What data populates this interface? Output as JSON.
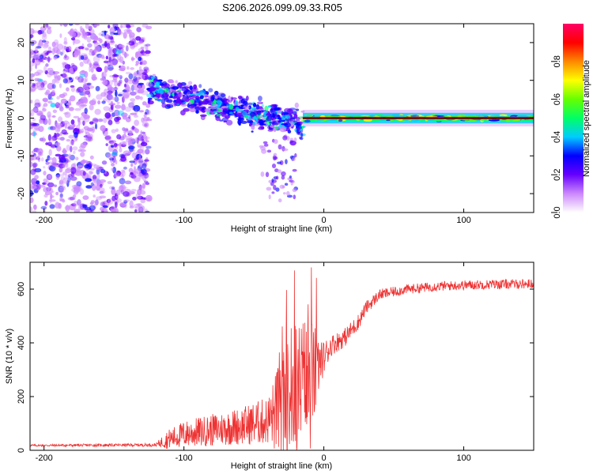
{
  "title": "S206.2026.099.09.33.R05",
  "chart_data": [
    {
      "type": "heatmap",
      "xlabel": "Height of straight line (km)",
      "ylabel": "Frequency (Hz)",
      "xlim": [
        -210,
        150
      ],
      "ylim": [
        -25,
        25
      ],
      "xticks": [
        -200,
        -100,
        0,
        100
      ],
      "yticks": [
        -20,
        -10,
        0,
        10,
        20
      ],
      "colorbar": {
        "label": "Normalized spectral amplitude",
        "range": [
          0,
          1
        ],
        "ticks": [
          "0.0",
          "0.2",
          "0.4",
          "0.6",
          "0.8"
        ],
        "tick_values": [
          0.0,
          0.2,
          0.4,
          0.6,
          0.8
        ],
        "colors": [
          "#ffffff",
          "#cc88ff",
          "#6600ff",
          "#0000ff",
          "#00ccff",
          "#00ff66",
          "#66ff00",
          "#ffff00",
          "#ff8800",
          "#ff0000",
          "#ff0066"
        ]
      },
      "regions": [
        {
          "desc": "diffuse noise",
          "x": [
            -210,
            -125
          ],
          "freq_spread": 25,
          "amplitude": 0.15
        },
        {
          "desc": "descending streak",
          "x": [
            -125,
            -15
          ],
          "freq_center": [
            8,
            -2
          ],
          "amplitude": 0.3
        },
        {
          "desc": "narrow band",
          "x": [
            -15,
            150
          ],
          "freq_center": 0,
          "amplitude": 0.6
        }
      ]
    },
    {
      "type": "line",
      "xlabel": "Height of straight line (km)",
      "ylabel": "SNR (10 * v/v)",
      "xlim": [
        -210,
        150
      ],
      "ylim": [
        0,
        700
      ],
      "xticks": [
        -200,
        -100,
        0,
        100
      ],
      "yticks": [
        0,
        200,
        400,
        600
      ],
      "color": "#ee3333",
      "series_x": [
        -210,
        -120,
        -112,
        -100,
        -80,
        -60,
        -40,
        -30,
        -20,
        -10,
        -3,
        5,
        15,
        25,
        30,
        40,
        60,
        80,
        100,
        120,
        150
      ],
      "series_y": [
        18,
        20,
        40,
        60,
        75,
        90,
        110,
        160,
        220,
        250,
        320,
        390,
        420,
        480,
        530,
        580,
        600,
        610,
        615,
        618,
        620
      ],
      "noise": [
        4,
        6,
        35,
        50,
        60,
        70,
        90,
        200,
        250,
        280,
        80,
        40,
        35,
        30,
        25,
        20,
        18,
        18,
        18,
        18,
        18
      ]
    }
  ]
}
